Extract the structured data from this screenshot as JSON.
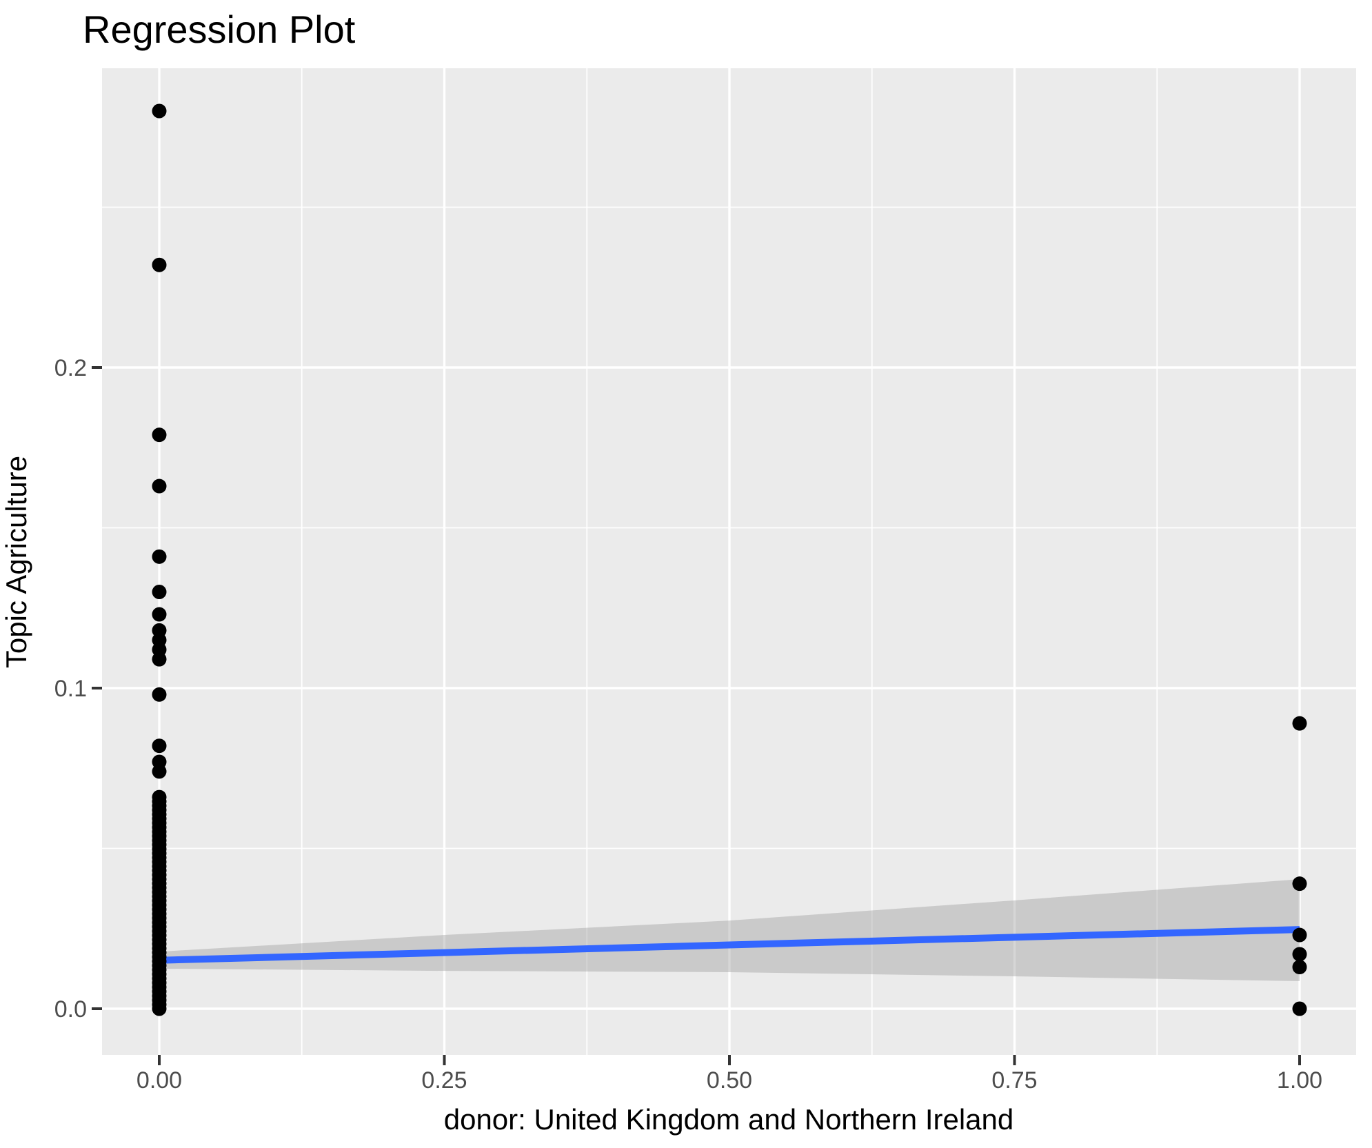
{
  "title": "Regression Plot",
  "chart_data": {
    "type": "scatter",
    "title": "Regression Plot",
    "xlabel": "donor: United Kingdom and Northern Ireland",
    "ylabel": "Topic Agriculture",
    "xlim": [
      -0.05,
      1.05
    ],
    "ylim": [
      -0.0144,
      0.2934
    ],
    "grid": "on",
    "legend": "none",
    "x_ticks": {
      "values": [
        0.0,
        0.25,
        0.5,
        0.75,
        1.0
      ],
      "labels": [
        "0.00",
        "0.25",
        "0.50",
        "0.75",
        "1.00"
      ]
    },
    "y_ticks": {
      "values": [
        0.0,
        0.1,
        0.2
      ],
      "labels": [
        "0.0",
        "0.1",
        "0.2"
      ]
    },
    "x_minor_ticks": [
      0.125,
      0.375,
      0.625,
      0.875
    ],
    "y_minor_ticks": [
      0.05,
      0.15,
      0.25
    ],
    "series": [
      {
        "name": "donor = 0 observations",
        "x": 0,
        "y": [
          0.28,
          0.232,
          0.179,
          0.163,
          0.141,
          0.13,
          0.123,
          0.118,
          0.115,
          0.112,
          0.109,
          0.098,
          0.082,
          0.077,
          0.074
        ]
      },
      {
        "name": "donor = 0 dense cluster (overlapping points)",
        "x": 0,
        "y_range": [
          0.0,
          0.066
        ],
        "count": 50
      },
      {
        "name": "donor = 1 observations",
        "x": 1,
        "y": [
          0.089,
          0.039,
          0.023,
          0.017,
          0.013,
          0.0
        ]
      }
    ],
    "regression_line": {
      "x": [
        0,
        1
      ],
      "y": [
        0.0151,
        0.0247
      ],
      "color": "#3366FF"
    },
    "confidence_band": {
      "x": [
        0,
        0.25,
        0.5,
        0.75,
        1
      ],
      "upper": [
        0.0178,
        0.023,
        0.0275,
        0.0338,
        0.0404
      ],
      "lower": [
        0.0125,
        0.0118,
        0.0114,
        0.0101,
        0.0086
      ],
      "fill_rgba": "rgba(153,153,153,0.4)"
    },
    "colors": {
      "point": "#000000",
      "panel_background": "#EBEBEB",
      "grid": "#FFFFFF",
      "tick_mark": "#333333",
      "tick_label": "#4D4D4D",
      "title": "#000000",
      "axis_title": "#000000",
      "smooth_line": "#3366FF"
    }
  }
}
